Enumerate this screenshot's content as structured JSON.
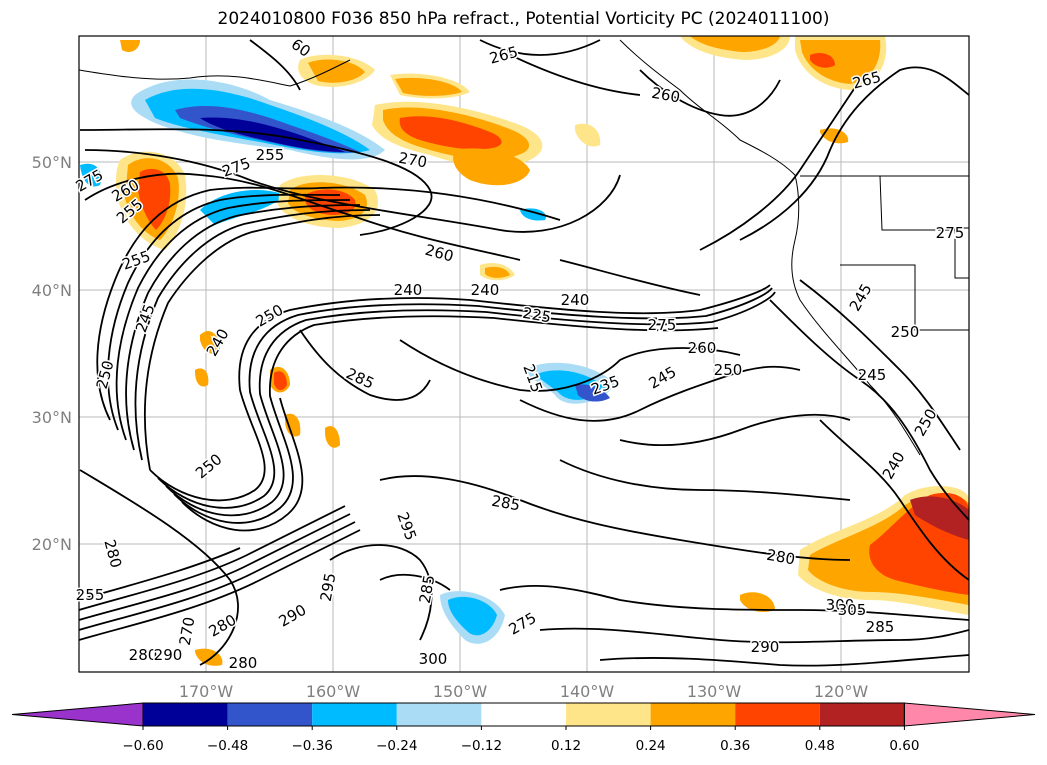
{
  "title": "2024010800 F036 850 hPa refract., Potential Vorticity PC (2024011100)",
  "map": {
    "lon_labels": [
      "170°W",
      "160°W",
      "150°W",
      "140°W",
      "130°W",
      "120°W"
    ],
    "lat_labels": [
      "50°N",
      "40°N",
      "30°N",
      "20°N"
    ]
  },
  "contour_labels": [
    "265",
    "260",
    "265",
    "60",
    "275",
    "270",
    "275",
    "255",
    "260",
    "255",
    "275",
    "260",
    "255",
    "245",
    "240",
    "240",
    "240",
    "250",
    "245",
    "240",
    "275",
    "260",
    "250",
    "245",
    "250",
    "235",
    "245",
    "225",
    "215",
    "250",
    "285",
    "250",
    "280",
    "280",
    "285",
    "295",
    "295",
    "290",
    "285",
    "270",
    "280",
    "275",
    "255",
    "280",
    "290",
    "300",
    "305",
    "285",
    "280",
    "290",
    "300",
    "240",
    "250"
  ],
  "colorbar": {
    "tick_labels": [
      "−0.60",
      "−0.48",
      "−0.36",
      "−0.24",
      "−0.12",
      "0.12",
      "0.24",
      "0.36",
      "0.48",
      "0.60"
    ],
    "colors": [
      "#9933cc",
      "#000099",
      "#3355cc",
      "#00bbff",
      "#aaddf5",
      "#ffffff",
      "#ffe58a",
      "#ffa500",
      "#ff4400",
      "#b22222",
      "#ff88aa"
    ]
  }
}
